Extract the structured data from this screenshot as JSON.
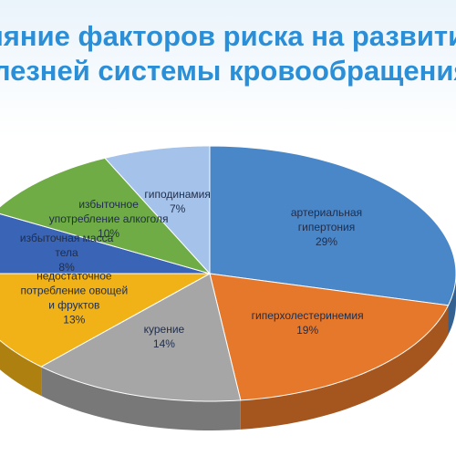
{
  "chart_data": {
    "type": "pie3d",
    "title": [
      "Влияние факторов риска на развитие",
      "болезней системы кровообращения"
    ],
    "categories": [
      [
        "артериальная",
        "гипертония"
      ],
      [
        "гиперхолестеринемия"
      ],
      [
        "курение"
      ],
      [
        "недостаточное",
        "потребление овощей",
        "и фруктов"
      ],
      [
        "избыточная масса",
        "тела"
      ],
      [
        "избыточное",
        "употребление алкоголя"
      ],
      [
        "гиподинамия"
      ]
    ],
    "values": [
      29,
      19,
      14,
      13,
      8,
      10,
      7
    ],
    "value_labels": [
      "29%",
      "19%",
      "14%",
      "13%",
      "8%",
      "10%",
      "7%"
    ],
    "colors": [
      "#4a87c9",
      "#e5782b",
      "#a6a6a6",
      "#f0b216",
      "#3a64b5",
      "#6fac46",
      "#a4c2ea"
    ]
  }
}
